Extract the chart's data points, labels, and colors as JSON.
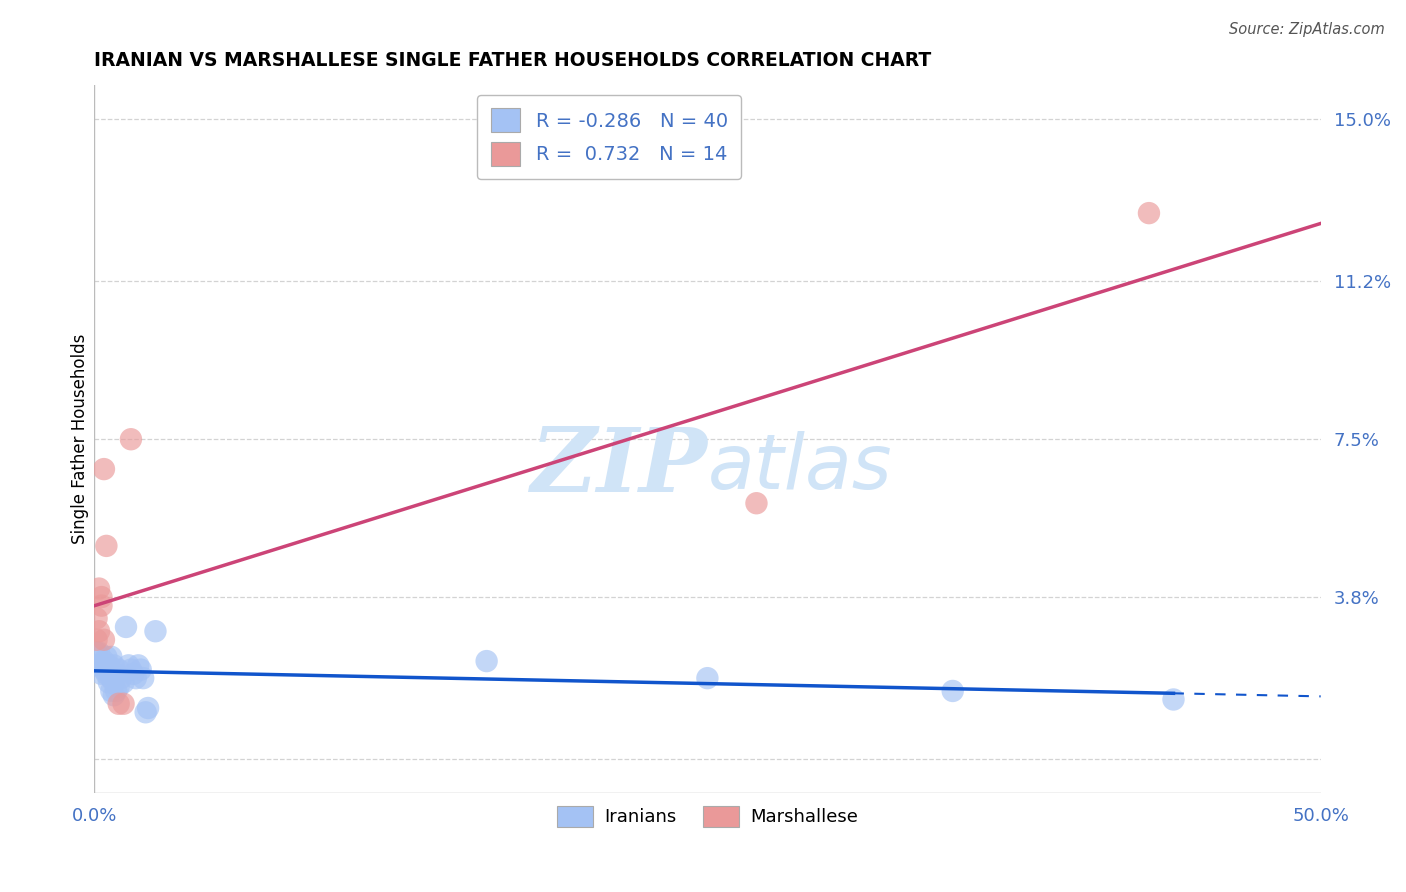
{
  "title": "IRANIAN VS MARSHALLESE SINGLE FATHER HOUSEHOLDS CORRELATION CHART",
  "source": "Source: ZipAtlas.com",
  "ylabel": "Single Father Households",
  "xlim": [
    0.0,
    0.5
  ],
  "ylim": [
    -0.008,
    0.158
  ],
  "yticks": [
    0.0,
    0.038,
    0.075,
    0.112,
    0.15
  ],
  "ytick_labels": [
    "",
    "3.8%",
    "7.5%",
    "11.2%",
    "15.0%"
  ],
  "xticks": [
    0.0,
    0.1,
    0.2,
    0.3,
    0.4,
    0.5
  ],
  "xtick_labels": [
    "0.0%",
    "",
    "",
    "",
    "",
    "50.0%"
  ],
  "legend_r_iranian": "-0.286",
  "legend_n_iranian": "40",
  "legend_r_marshallese": "0.732",
  "legend_n_marshallese": "14",
  "iranian_color": "#a4c2f4",
  "marshallese_color": "#ea9999",
  "line_iranian_color": "#1155cc",
  "line_marshallese_color": "#cc4477",
  "watermark_color": "#d0e4f7",
  "iranian_points": [
    [
      0.001,
      0.025
    ],
    [
      0.002,
      0.022
    ],
    [
      0.002,
      0.025
    ],
    [
      0.003,
      0.022
    ],
    [
      0.003,
      0.02
    ],
    [
      0.004,
      0.023
    ],
    [
      0.004,
      0.021
    ],
    [
      0.005,
      0.024
    ],
    [
      0.005,
      0.022
    ],
    [
      0.005,
      0.02
    ],
    [
      0.006,
      0.021
    ],
    [
      0.006,
      0.018
    ],
    [
      0.006,
      0.022
    ],
    [
      0.007,
      0.024
    ],
    [
      0.007,
      0.019
    ],
    [
      0.007,
      0.016
    ],
    [
      0.008,
      0.022
    ],
    [
      0.008,
      0.018
    ],
    [
      0.008,
      0.015
    ],
    [
      0.009,
      0.02
    ],
    [
      0.009,
      0.016
    ],
    [
      0.01,
      0.021
    ],
    [
      0.01,
      0.017
    ],
    [
      0.011,
      0.019
    ],
    [
      0.012,
      0.018
    ],
    [
      0.013,
      0.031
    ],
    [
      0.014,
      0.022
    ],
    [
      0.015,
      0.021
    ],
    [
      0.016,
      0.02
    ],
    [
      0.017,
      0.019
    ],
    [
      0.018,
      0.022
    ],
    [
      0.019,
      0.021
    ],
    [
      0.02,
      0.019
    ],
    [
      0.021,
      0.011
    ],
    [
      0.022,
      0.012
    ],
    [
      0.025,
      0.03
    ],
    [
      0.16,
      0.023
    ],
    [
      0.25,
      0.019
    ],
    [
      0.35,
      0.016
    ],
    [
      0.44,
      0.014
    ]
  ],
  "marshallese_points": [
    [
      0.001,
      0.028
    ],
    [
      0.001,
      0.033
    ],
    [
      0.002,
      0.04
    ],
    [
      0.002,
      0.03
    ],
    [
      0.003,
      0.038
    ],
    [
      0.003,
      0.036
    ],
    [
      0.004,
      0.028
    ],
    [
      0.004,
      0.068
    ],
    [
      0.005,
      0.05
    ],
    [
      0.01,
      0.013
    ],
    [
      0.012,
      0.013
    ],
    [
      0.015,
      0.075
    ],
    [
      0.27,
      0.06
    ],
    [
      0.43,
      0.128
    ]
  ],
  "line_iranian_solid_end": 0.44,
  "background_color": "#ffffff",
  "grid_color": "#c9c9c9"
}
